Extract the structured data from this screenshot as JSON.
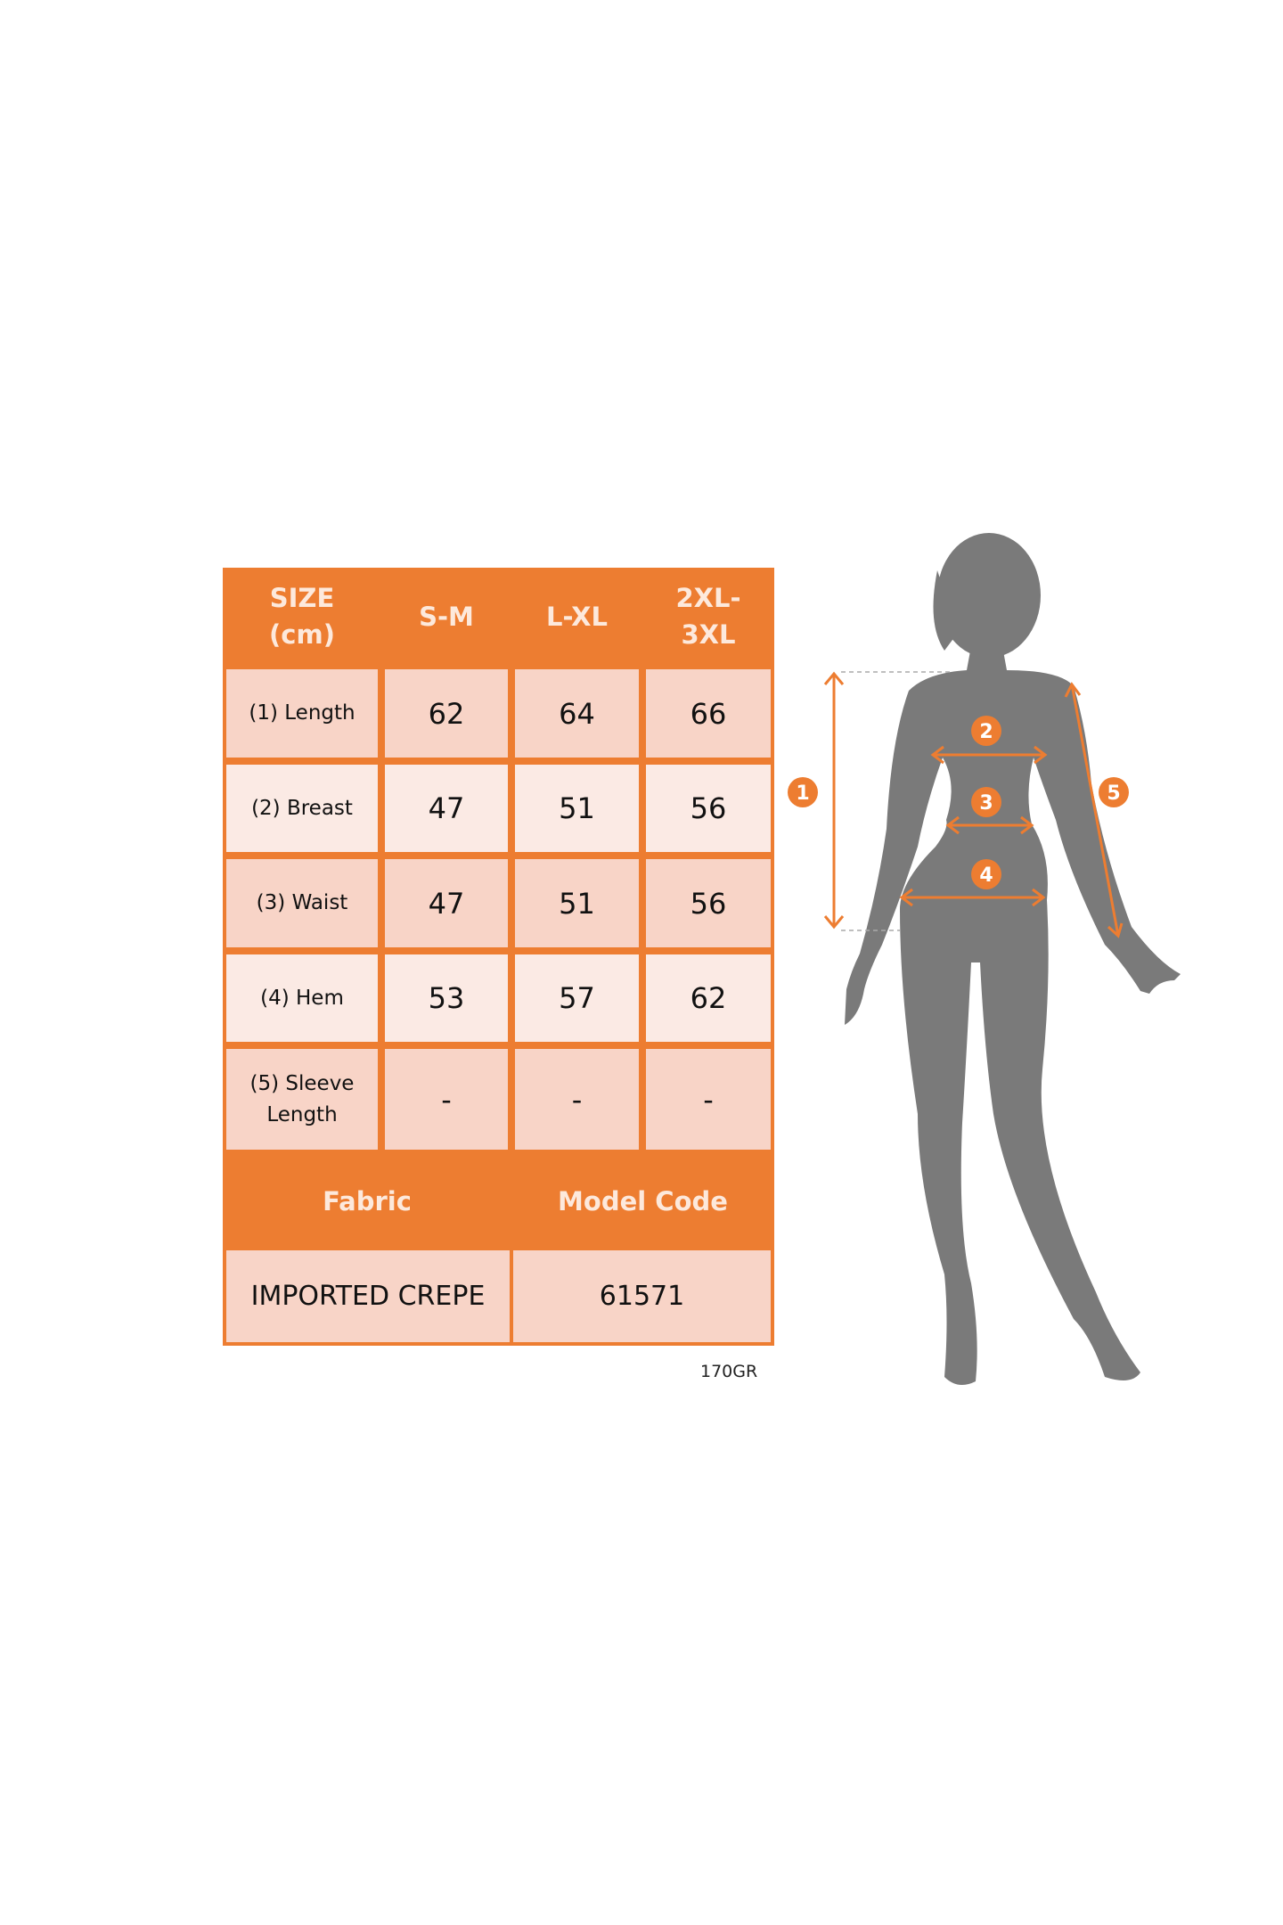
{
  "table": {
    "header": [
      "SIZE\n(cm)",
      "S-M",
      "L-XL",
      "2XL-\n3XL"
    ],
    "rows": [
      {
        "label": "(1) Length",
        "values": [
          "62",
          "64",
          "66"
        ]
      },
      {
        "label": "(2) Breast",
        "values": [
          "47",
          "51",
          "56"
        ]
      },
      {
        "label": "(3) Waist",
        "values": [
          "47",
          "51",
          "56"
        ]
      },
      {
        "label": "(4) Hem",
        "values": [
          "53",
          "57",
          "62"
        ]
      },
      {
        "label": "(5) Sleeve\nLength",
        "values": [
          "-",
          "-",
          "-"
        ]
      }
    ],
    "fabric_label": "Fabric",
    "model_code_label": "Model Code",
    "fabric_value": "IMPORTED CREPE",
    "model_code_value": "61571"
  },
  "weight_note": "170GR",
  "figure": {
    "markers": [
      "1",
      "2",
      "3",
      "4",
      "5"
    ]
  },
  "colors": {
    "accent": "#ED7D31",
    "row_dark": "#F8D4C7",
    "row_light": "#FBEAE4",
    "silhouette": "#7A7A7A"
  }
}
